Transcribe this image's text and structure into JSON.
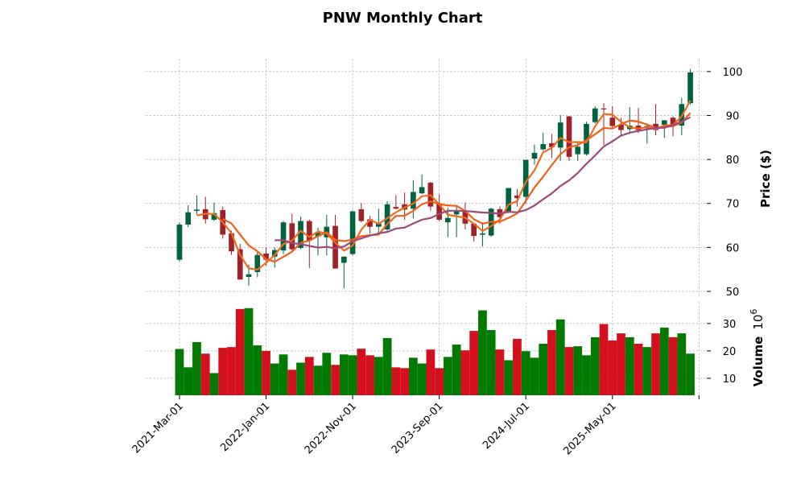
{
  "chart_data": {
    "type": "candlestick",
    "title": "PNW Monthly Chart",
    "ylabel": "Price ($)",
    "volume_label": "Volume",
    "volume_exponent_base": "10",
    "volume_exponent": "6",
    "start_month": "2021-03",
    "frequency": "monthly",
    "x_tick_indices": [
      0,
      10,
      20,
      30,
      40,
      50,
      60
    ],
    "x_tick_labels": [
      "2021-Mar-01",
      "2022-Jan-01",
      "2022-Nov-01",
      "2023-Sep-01",
      "2024-Jul-01",
      "2025-May-01",
      ""
    ],
    "price_ticks": [
      50,
      60,
      70,
      80,
      90,
      100
    ],
    "price_ylim": [
      48.9,
      102.9
    ],
    "volume_ticks": [
      10,
      20,
      30
    ],
    "volume_ylim": [
      3.8,
      37.9
    ],
    "grid": true,
    "moving_averages": [
      {
        "period": 3,
        "color": "#f26b1d"
      },
      {
        "period": 6,
        "color": "#f0601a"
      },
      {
        "period": 12,
        "color": "#9c4a7c"
      }
    ],
    "colors": {
      "up": "#006340",
      "down": "#a02128",
      "vol_up": "#007a00",
      "vol_down": "#d5101e"
    },
    "open": [
      57.2,
      65.2,
      68.3,
      68.7,
      66.3,
      68.5,
      63.2,
      59.6,
      53.3,
      54.4,
      58.6,
      57.9,
      59.3,
      65.5,
      59.9,
      66.0,
      62.5,
      62.3,
      64.9,
      56.5,
      58.5,
      68.7,
      66.4,
      64.7,
      64.1,
      69.2,
      69.8,
      68.8,
      72.3,
      74.7,
      70.0,
      65.7,
      67.5,
      68.1,
      65.4,
      62.9,
      62.7,
      68.7,
      68.1,
      71.8,
      71.5,
      80.2,
      82.3,
      83.7,
      82.7,
      89.8,
      81.2,
      81.2,
      88.5,
      91.6,
      89.5,
      87.9,
      86.9,
      87.7,
      87.1,
      88.1,
      87.9,
      89.5,
      87.7,
      92.8
    ],
    "high": [
      65.7,
      69.6,
      71.8,
      71.5,
      70.2,
      69.3,
      63.8,
      60.8,
      56.1,
      59.0,
      60.0,
      60.0,
      66.0,
      67.6,
      67.0,
      66.3,
      64.5,
      67.4,
      67.4,
      58.0,
      68.4,
      70.1,
      67.2,
      68.8,
      70.5,
      71.9,
      72.5,
      75.3,
      76.6,
      74.9,
      72.0,
      69.0,
      69.3,
      70.2,
      65.6,
      65.7,
      69.0,
      69.3,
      73.5,
      73.3,
      79.9,
      83.4,
      86.1,
      85.8,
      90.1,
      89.9,
      84.0,
      88.6,
      92.1,
      92.8,
      92.1,
      89.5,
      91.9,
      91.7,
      87.8,
      92.6,
      89.0,
      89.8,
      94.0,
      100.6
    ],
    "low": [
      56.8,
      64.6,
      67.5,
      65.4,
      66.0,
      62.0,
      58.3,
      52.7,
      51.3,
      53.2,
      55.9,
      55.4,
      58.5,
      59.3,
      59.6,
      55.3,
      58.2,
      58.2,
      55.2,
      50.7,
      58.2,
      65.7,
      63.2,
      62.9,
      63.8,
      68.7,
      66.3,
      66.6,
      72.1,
      68.4,
      66.0,
      62.3,
      62.3,
      64.1,
      61.3,
      60.2,
      62.4,
      65.4,
      67.8,
      69.3,
      70.0,
      78.8,
      82.0,
      80.3,
      79.7,
      79.7,
      79.7,
      80.9,
      88.2,
      83.3,
      87.0,
      85.2,
      85.8,
      86.0,
      83.6,
      85.5,
      84.9,
      85.3,
      85.5,
      92.5
    ],
    "close": [
      65.2,
      68.0,
      68.6,
      66.4,
      67.8,
      62.9,
      59.1,
      52.7,
      53.9,
      58.3,
      57.2,
      59.4,
      65.7,
      59.6,
      66.0,
      61.5,
      63.3,
      64.7,
      55.2,
      57.9,
      68.2,
      66.0,
      64.7,
      65.4,
      69.8,
      68.8,
      68.6,
      72.6,
      73.7,
      69.3,
      66.3,
      66.7,
      68.2,
      65.4,
      62.6,
      63.2,
      68.8,
      66.9,
      73.5,
      71.2,
      79.9,
      81.5,
      83.5,
      82.8,
      88.4,
      80.6,
      82.9,
      88.1,
      91.6,
      91.4,
      87.6,
      86.7,
      87.7,
      86.7,
      87.6,
      86.7,
      88.9,
      87.9,
      92.6,
      99.8
    ],
    "volume_millions": [
      20.7,
      14.0,
      23.2,
      19.0,
      11.9,
      21.1,
      21.4,
      35.3,
      35.6,
      22.0,
      20.0,
      15.4,
      18.7,
      13.1,
      15.7,
      17.8,
      14.6,
      19.3,
      14.9,
      18.7,
      18.4,
      20.8,
      18.4,
      17.8,
      24.7,
      14.0,
      13.7,
      17.5,
      15.4,
      20.5,
      13.7,
      17.8,
      22.3,
      20.2,
      27.3,
      34.8,
      27.6,
      20.5,
      16.6,
      24.4,
      19.9,
      17.5,
      22.6,
      27.6,
      31.5,
      21.4,
      21.7,
      18.4,
      25.0,
      29.8,
      23.8,
      26.4,
      25.0,
      22.6,
      21.4,
      26.4,
      28.5,
      25.0,
      26.4,
      19.0
    ]
  }
}
